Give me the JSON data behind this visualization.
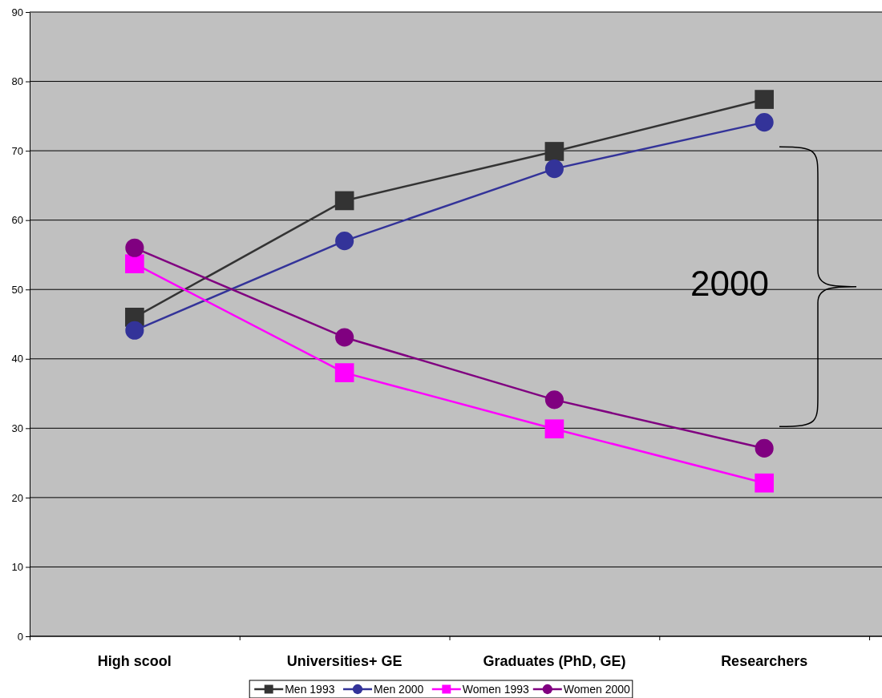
{
  "chart_data": {
    "type": "line",
    "categories": [
      "High scool",
      "Universities+ GE",
      "Graduates (PhD, GE)",
      "Researchers"
    ],
    "ylim": [
      0,
      90
    ],
    "yticks": [
      0,
      10,
      20,
      30,
      40,
      50,
      60,
      70,
      80,
      90
    ],
    "grid": "y",
    "legend": "bottom",
    "line_style": "solid",
    "annotations": [
      "2000"
    ],
    "series": [
      {
        "name": "Men 1993",
        "color": "#333333",
        "marker": "square",
        "values": [
          46,
          62.8,
          69.9,
          77.4
        ]
      },
      {
        "name": "Men 2000",
        "color": "#333399",
        "marker": "circle",
        "values": [
          44.1,
          57,
          67.4,
          74.1
        ]
      },
      {
        "name": "Women 1993",
        "color": "#ff00ff",
        "marker": "square",
        "values": [
          53.7,
          38,
          29.9,
          22.1
        ]
      },
      {
        "name": "Women 2000",
        "color": "#800080",
        "marker": "circle",
        "values": [
          56,
          43.1,
          34.1,
          27.1
        ]
      }
    ]
  }
}
